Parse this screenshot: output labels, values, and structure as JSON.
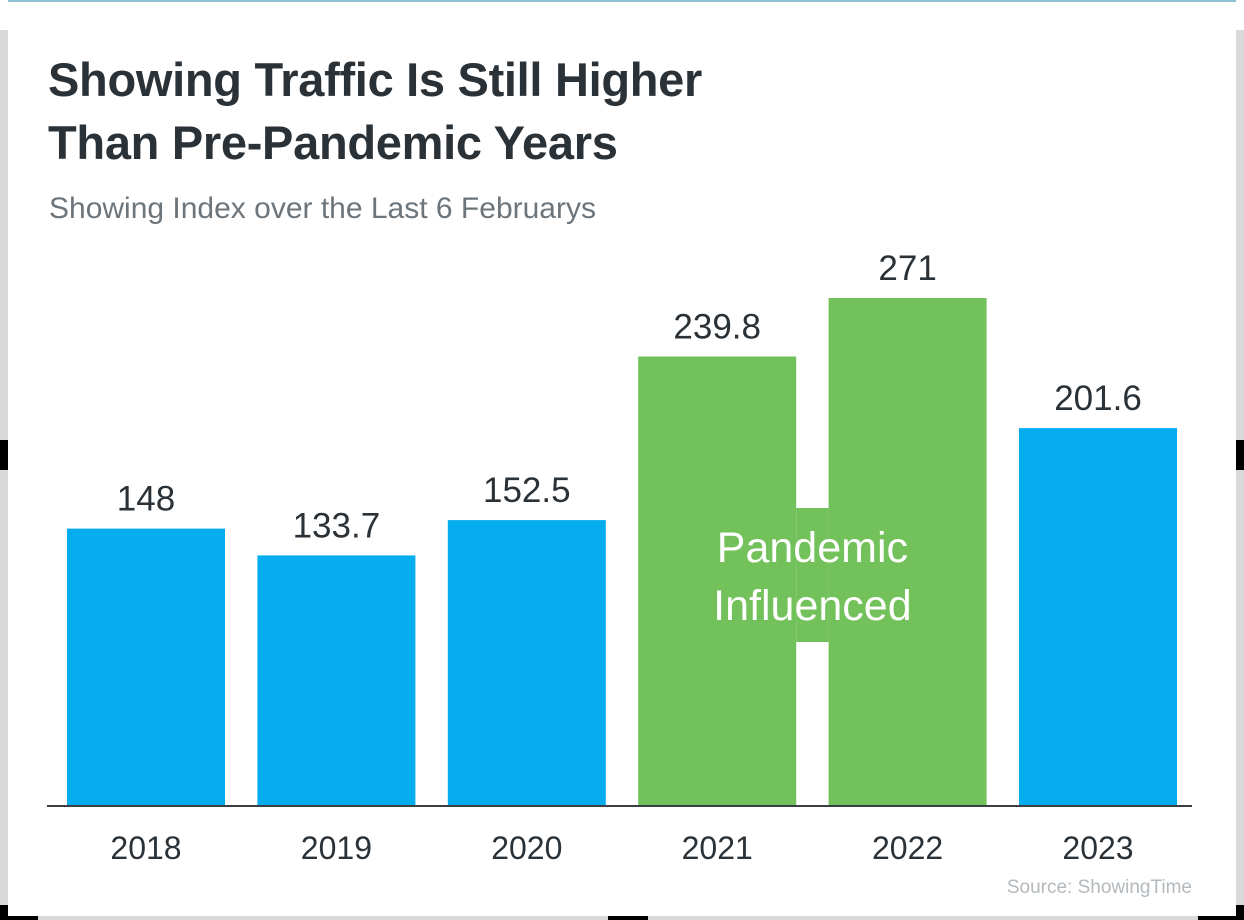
{
  "header": {
    "title_line1": "Showing Traffic Is Still Higher",
    "title_line2": "Than Pre-Pandemic Years",
    "subtitle": "Showing Index over the Last 6 Februarys"
  },
  "footer": {
    "source": "Source: ShowingTime"
  },
  "colors": {
    "normal": "#05ADEE",
    "pandemic": "#72C15A",
    "axis": "#3a3f44"
  },
  "chart_data": {
    "type": "bar",
    "title": "Showing Traffic Is Still Higher Than Pre-Pandemic Years",
    "subtitle": "Showing Index over the Last 6 Februarys",
    "xlabel": "",
    "ylabel": "",
    "categories": [
      "2018",
      "2019",
      "2020",
      "2021",
      "2022",
      "2023"
    ],
    "values": [
      148,
      133.7,
      152.5,
      239.8,
      271,
      201.6
    ],
    "value_labels": [
      "148",
      "133.7",
      "152.5",
      "239.8",
      "271",
      "201.6"
    ],
    "highlighted": [
      false,
      false,
      false,
      true,
      true,
      false
    ],
    "ylim": [
      0,
      271
    ],
    "grid": false,
    "annotation": {
      "line1": "Pandemic",
      "line2": "Influenced",
      "applies_to": [
        "2021",
        "2022"
      ]
    },
    "source": "Source: ShowingTime"
  }
}
